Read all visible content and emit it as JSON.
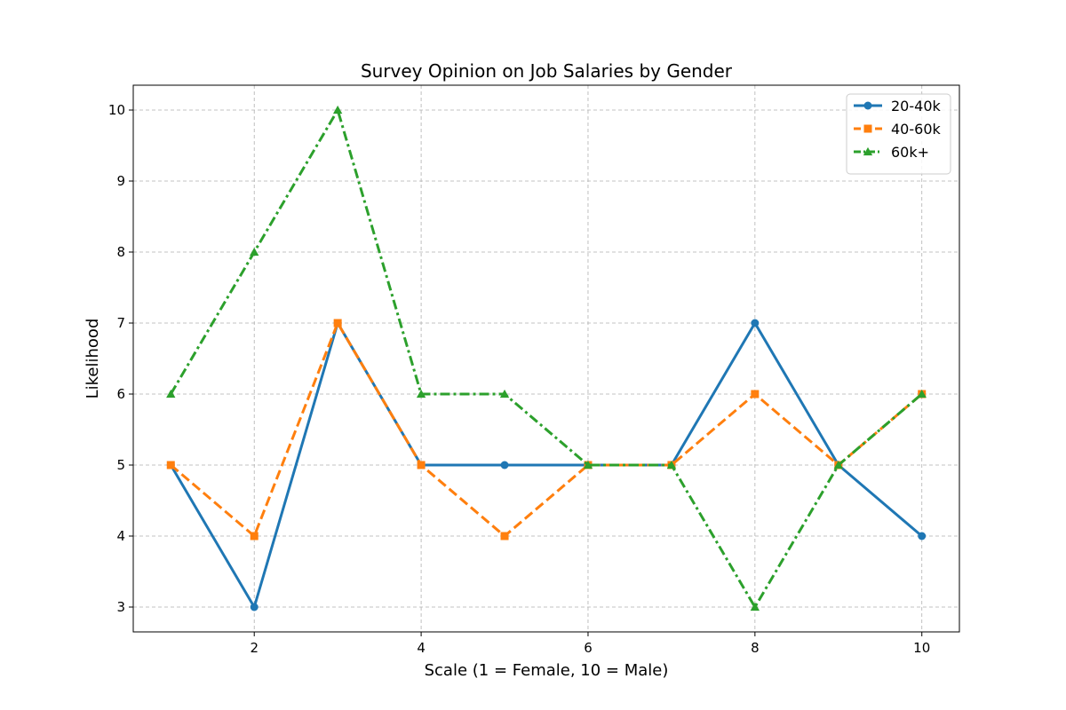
{
  "chart_data": {
    "type": "line",
    "title": "Survey Opinion on Job Salaries by Gender",
    "xlabel": "Scale (1 = Female, 10 = Male)",
    "ylabel": "Likelihood",
    "x": [
      1,
      2,
      3,
      4,
      5,
      6,
      7,
      8,
      9,
      10
    ],
    "xticks": [
      2,
      4,
      6,
      8,
      10
    ],
    "yticks": [
      3,
      4,
      5,
      6,
      7,
      8,
      9,
      10
    ],
    "xlim": [
      0.55,
      10.45
    ],
    "ylim": [
      2.65,
      10.35
    ],
    "grid": true,
    "legend_position": "top-right",
    "series": [
      {
        "name": "20-40k",
        "values": [
          5,
          3,
          7,
          5,
          5,
          5,
          5,
          7,
          5,
          4
        ],
        "color": "#1f77b4",
        "marker": "circle",
        "linestyle": "solid"
      },
      {
        "name": "40-60k",
        "values": [
          5,
          4,
          7,
          5,
          4,
          5,
          5,
          6,
          5,
          6
        ],
        "color": "#ff7f0e",
        "marker": "square",
        "linestyle": "dashed"
      },
      {
        "name": "60k+",
        "values": [
          6,
          8,
          10,
          6,
          6,
          5,
          5,
          3,
          5,
          6
        ],
        "color": "#2ca02c",
        "marker": "triangle",
        "linestyle": "dashdot"
      }
    ]
  }
}
